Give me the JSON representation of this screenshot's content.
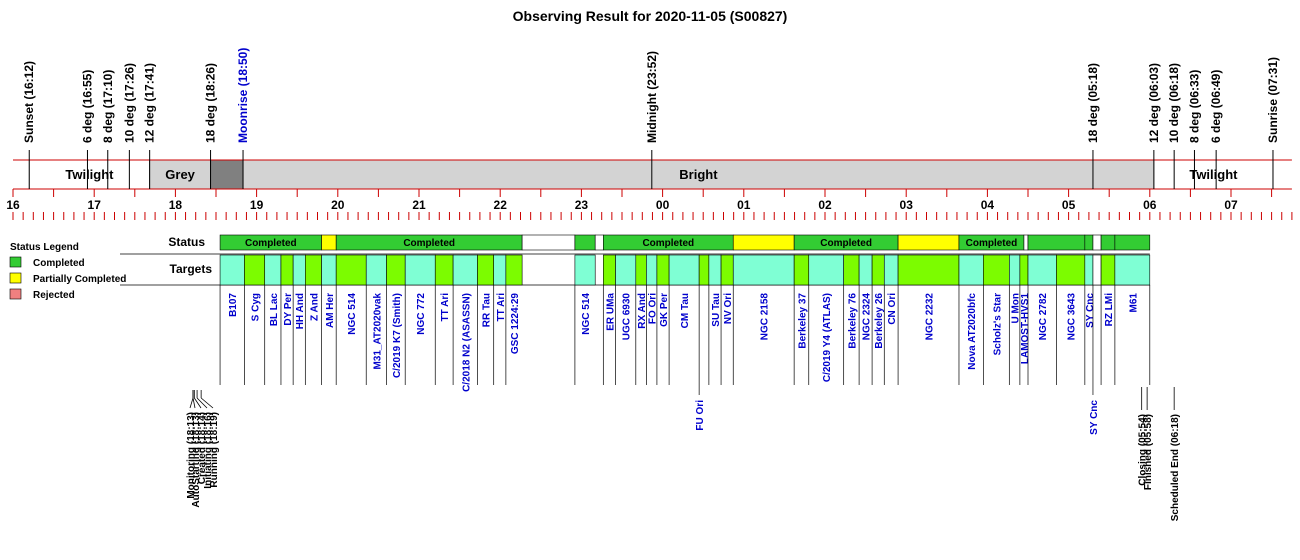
{
  "chart_data": {
    "type": "observing-timeline",
    "title": "Observing Result for 2020-11-05 (S00827)",
    "x_unit": "hours after 16:00 local time",
    "x_range": [
      0,
      15.75
    ],
    "hour_ticks": [
      "16",
      "17",
      "18",
      "19",
      "20",
      "21",
      "22",
      "23",
      "00",
      "01",
      "02",
      "03",
      "04",
      "05",
      "06",
      "07"
    ],
    "sun_events": [
      {
        "label": "Sunset (16:12)",
        "t": 0.2,
        "blue": false
      },
      {
        "label": "6 deg (16:55)",
        "t": 0.917,
        "blue": false
      },
      {
        "label": "8 deg (17:10)",
        "t": 1.167,
        "blue": false
      },
      {
        "label": "10 deg (17:26)",
        "t": 1.433,
        "blue": false
      },
      {
        "label": "12 deg (17:41)",
        "t": 1.683,
        "blue": false
      },
      {
        "label": "18 deg (18:26)",
        "t": 2.433,
        "blue": false
      },
      {
        "label": "Moonrise (18:50)",
        "t": 2.833,
        "blue": true
      },
      {
        "label": "Midnight (23:52)",
        "t": 7.867,
        "blue": false
      },
      {
        "label": "18 deg (05:18)",
        "t": 13.3,
        "blue": false
      },
      {
        "label": "12 deg (06:03)",
        "t": 14.05,
        "blue": false
      },
      {
        "label": "10 deg (06:18)",
        "t": 14.3,
        "blue": false
      },
      {
        "label": "8 deg (06:33)",
        "t": 14.55,
        "blue": false
      },
      {
        "label": "6 deg (06:49)",
        "t": 14.817,
        "blue": false
      },
      {
        "label": "Sunrise (07:31)",
        "t": 15.517,
        "blue": false
      }
    ],
    "sky_bands": [
      {
        "label": "Twilight",
        "start": 0.2,
        "end": 1.683,
        "color": "#ffffff"
      },
      {
        "label": "Grey",
        "start": 1.683,
        "end": 2.433,
        "color": "#d3d3d3"
      },
      {
        "label": "",
        "start": 2.433,
        "end": 2.833,
        "color": "#808080"
      },
      {
        "label": "Bright",
        "start": 2.833,
        "end": 14.05,
        "color": "#d3d3d3"
      },
      {
        "label": "Twilight",
        "start": 14.05,
        "end": 15.517,
        "color": "#ffffff"
      }
    ],
    "row_labels": {
      "status": "Status",
      "targets": "Targets"
    },
    "legend": {
      "title": "Status Legend",
      "items": [
        {
          "label": "Completed",
          "color": "#33cc33"
        },
        {
          "label": "Partially Completed",
          "color": "#ffff00"
        },
        {
          "label": "Rejected",
          "color": "#f08080"
        }
      ]
    },
    "status_blocks": [
      {
        "start": 2.55,
        "end": 3.8,
        "status": "Completed",
        "label": "Completed"
      },
      {
        "start": 3.8,
        "end": 3.98,
        "status": "Partially Completed",
        "label": ""
      },
      {
        "start": 3.98,
        "end": 6.27,
        "status": "Completed",
        "label": "Completed"
      },
      {
        "start": 6.27,
        "end": 6.92,
        "status": "none",
        "label": ""
      },
      {
        "start": 6.92,
        "end": 7.17,
        "status": "Completed",
        "label": ""
      },
      {
        "start": 7.17,
        "end": 7.27,
        "status": "none",
        "label": ""
      },
      {
        "start": 7.27,
        "end": 8.87,
        "status": "Completed",
        "label": "Completed"
      },
      {
        "start": 8.87,
        "end": 9.62,
        "status": "Partially Completed",
        "label": ""
      },
      {
        "start": 9.62,
        "end": 10.9,
        "status": "Completed",
        "label": "Completed"
      },
      {
        "start": 10.9,
        "end": 11.65,
        "status": "Partially Completed",
        "label": ""
      },
      {
        "start": 11.65,
        "end": 12.45,
        "status": "Completed",
        "label": "Completed"
      },
      {
        "start": 12.45,
        "end": 12.5,
        "status": "none",
        "label": ""
      },
      {
        "start": 12.5,
        "end": 13.2,
        "status": "Completed",
        "label": ""
      },
      {
        "start": 13.2,
        "end": 13.3,
        "status": "Completed",
        "label": ""
      },
      {
        "start": 13.3,
        "end": 13.4,
        "status": "none",
        "label": ""
      },
      {
        "start": 13.4,
        "end": 13.57,
        "status": "Completed",
        "label": ""
      },
      {
        "start": 13.57,
        "end": 14.0,
        "status": "Completed",
        "label": ""
      }
    ],
    "target_blocks": [
      {
        "start": 2.55,
        "end": 2.85,
        "name": "B107",
        "color": "#7fffd4"
      },
      {
        "start": 2.85,
        "end": 3.1,
        "name": "S Cyg",
        "color": "#7cfc00"
      },
      {
        "start": 3.1,
        "end": 3.3,
        "name": "BL Lac",
        "color": "#7fffd4"
      },
      {
        "start": 3.3,
        "end": 3.45,
        "name": "DY Per",
        "color": "#7cfc00"
      },
      {
        "start": 3.45,
        "end": 3.6,
        "name": "HH And",
        "color": "#7fffd4"
      },
      {
        "start": 3.6,
        "end": 3.8,
        "name": "Z And",
        "color": "#7cfc00"
      },
      {
        "start": 3.8,
        "end": 3.98,
        "name": "AM Her",
        "color": "#7fffd4"
      },
      {
        "start": 3.98,
        "end": 4.35,
        "name": "NGC 514",
        "color": "#7cfc00"
      },
      {
        "start": 4.35,
        "end": 4.6,
        "name": "M31_AT2020vak",
        "color": "#7fffd4"
      },
      {
        "start": 4.6,
        "end": 4.83,
        "name": "C/2019 K7 (Smith)",
        "color": "#7cfc00"
      },
      {
        "start": 4.83,
        "end": 5.2,
        "name": "NGC 772",
        "color": "#7fffd4"
      },
      {
        "start": 5.2,
        "end": 5.42,
        "name": "TT Ari",
        "color": "#7cfc00"
      },
      {
        "start": 5.42,
        "end": 5.72,
        "name": "C/2018 N2 (ASASSN)",
        "color": "#7fffd4"
      },
      {
        "start": 5.72,
        "end": 5.92,
        "name": "RR Tau",
        "color": "#7cfc00"
      },
      {
        "start": 5.92,
        "end": 6.07,
        "name": "TT Ari",
        "color": "#7fffd4"
      },
      {
        "start": 6.07,
        "end": 6.27,
        "name": "GSC 1224:29",
        "color": "#7cfc00"
      },
      {
        "start": 6.92,
        "end": 7.17,
        "name": "NGC 514",
        "color": "#7fffd4"
      },
      {
        "start": 7.27,
        "end": 7.42,
        "name": "ER UMa",
        "color": "#7cfc00"
      },
      {
        "start": 7.42,
        "end": 7.67,
        "name": "UGC 6930",
        "color": "#7fffd4"
      },
      {
        "start": 7.67,
        "end": 7.8,
        "name": "RX And",
        "color": "#7cfc00"
      },
      {
        "start": 7.8,
        "end": 7.93,
        "name": "FO Ori",
        "color": "#7fffd4"
      },
      {
        "start": 7.93,
        "end": 8.08,
        "name": "GK Per",
        "color": "#7cfc00"
      },
      {
        "start": 8.08,
        "end": 8.45,
        "name": "CM Tau",
        "color": "#7fffd4"
      },
      {
        "start": 8.45,
        "end": 8.57,
        "name": "FU Ori",
        "color": "#7cfc00"
      },
      {
        "start": 8.57,
        "end": 8.72,
        "name": "SU Tau",
        "color": "#7fffd4"
      },
      {
        "start": 8.72,
        "end": 8.87,
        "name": "NV Ori",
        "color": "#7cfc00"
      },
      {
        "start": 8.87,
        "end": 9.62,
        "name": "NGC 2158",
        "color": "#7fffd4"
      },
      {
        "start": 9.62,
        "end": 9.8,
        "name": "Berkeley 37",
        "color": "#7cfc00"
      },
      {
        "start": 9.8,
        "end": 10.23,
        "name": "C/2019 Y4 (ATLAS)",
        "color": "#7fffd4"
      },
      {
        "start": 10.23,
        "end": 10.42,
        "name": "Berkeley 76",
        "color": "#7cfc00"
      },
      {
        "start": 10.42,
        "end": 10.58,
        "name": "NGC 2324",
        "color": "#7fffd4"
      },
      {
        "start": 10.58,
        "end": 10.73,
        "name": "Berkeley 26",
        "color": "#7cfc00"
      },
      {
        "start": 10.73,
        "end": 10.9,
        "name": "CN Ori",
        "color": "#7fffd4"
      },
      {
        "start": 10.9,
        "end": 11.65,
        "name": "NGC 2232",
        "color": "#7cfc00"
      },
      {
        "start": 11.65,
        "end": 11.95,
        "name": "Nova AT2020bfc",
        "color": "#7fffd4"
      },
      {
        "start": 11.95,
        "end": 12.27,
        "name": "Scholz's Star",
        "color": "#7cfc00"
      },
      {
        "start": 12.27,
        "end": 12.4,
        "name": "U Mon",
        "color": "#7fffd4"
      },
      {
        "start": 12.4,
        "end": 12.5,
        "name": "LAMOST-HVS1",
        "color": "#7cfc00"
      },
      {
        "start": 12.5,
        "end": 12.85,
        "name": "NGC 2782",
        "color": "#7fffd4"
      },
      {
        "start": 12.85,
        "end": 13.2,
        "name": "NGC 3643",
        "color": "#7cfc00"
      },
      {
        "start": 13.2,
        "end": 13.3,
        "name": "SY Cnc",
        "color": "#7fffd4"
      },
      {
        "start": 13.3,
        "end": 13.4,
        "name": "",
        "color": "#ffffff"
      },
      {
        "start": 13.4,
        "end": 13.57,
        "name": "RZ LMi",
        "color": "#7cfc00"
      },
      {
        "start": 13.57,
        "end": 14.0,
        "name": "M61",
        "color": "#7fffd4"
      }
    ],
    "drop_labels": [
      {
        "name": "FU Ori",
        "t": 8.45
      },
      {
        "name": "SY Cnc",
        "t": 13.3
      }
    ],
    "start_events": [
      {
        "label": "Monitoring (18:13)",
        "t": 2.217
      },
      {
        "label": "AutoStarting (18:13)",
        "t": 2.217
      },
      {
        "label": "Created (18:14)",
        "t": 2.233
      },
      {
        "label": "Initiating (18:16)",
        "t": 2.267
      },
      {
        "label": "Running (18:19)",
        "t": 2.317
      }
    ],
    "end_events": [
      {
        "label": "Closing (05:54)",
        "t": 13.9
      },
      {
        "label": "Finished (05:58)",
        "t": 13.967
      },
      {
        "label": "Scheduled End (06:18)",
        "t": 14.3
      }
    ]
  }
}
